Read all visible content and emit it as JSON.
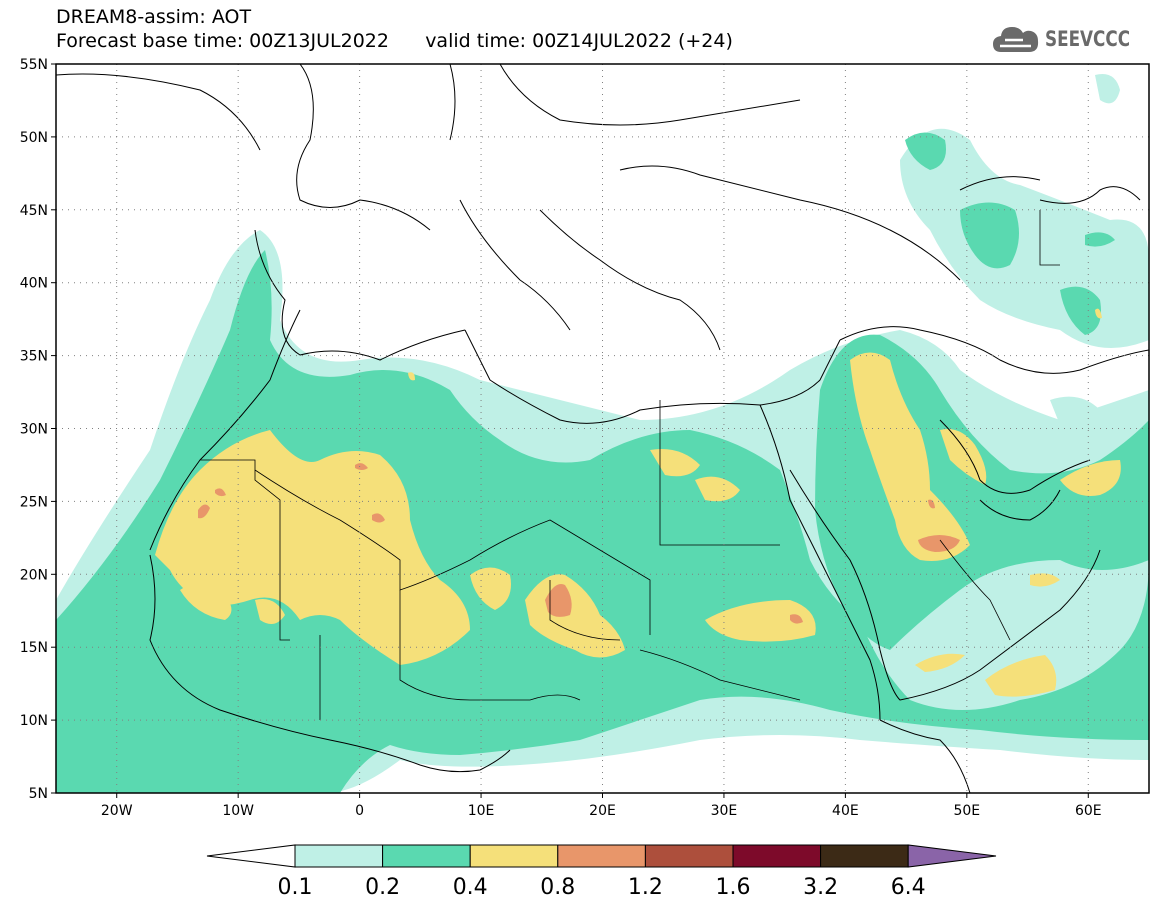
{
  "header": {
    "title_line1": "DREAM8-assim: AOT",
    "title_line2": "Forecast base time: 00Z13JUL2022      valid time: 00Z14JUL2022 (+24)",
    "logo_text": "SEEVCCC",
    "logo_icon": "cloud-icon"
  },
  "map": {
    "lon_range": [
      -25,
      65
    ],
    "lat_range": [
      5,
      55
    ],
    "lat_ticks": [
      {
        "value": 55,
        "label": "55N"
      },
      {
        "value": 50,
        "label": "50N"
      },
      {
        "value": 45,
        "label": "45N"
      },
      {
        "value": 40,
        "label": "40N"
      },
      {
        "value": 35,
        "label": "35N"
      },
      {
        "value": 30,
        "label": "30N"
      },
      {
        "value": 25,
        "label": "25N"
      },
      {
        "value": 20,
        "label": "20N"
      },
      {
        "value": 15,
        "label": "15N"
      },
      {
        "value": 10,
        "label": "10N"
      },
      {
        "value": 5,
        "label": "5N"
      }
    ],
    "lon_ticks": [
      {
        "value": -20,
        "label": "20W"
      },
      {
        "value": -10,
        "label": "10W"
      },
      {
        "value": 0,
        "label": "0"
      },
      {
        "value": 10,
        "label": "10E"
      },
      {
        "value": 20,
        "label": "20E"
      },
      {
        "value": 30,
        "label": "30E"
      },
      {
        "value": 40,
        "label": "40E"
      },
      {
        "value": 50,
        "label": "50E"
      },
      {
        "value": 60,
        "label": "60E"
      }
    ]
  },
  "colorbar": {
    "labels": [
      "0.1",
      "0.2",
      "0.4",
      "0.8",
      "1.2",
      "1.6",
      "3.2",
      "6.4"
    ],
    "colors": [
      "#ffffff",
      "#bff0e6",
      "#5ad9b0",
      "#f5e07a",
      "#e8966a",
      "#ad4f3c",
      "#7d0a2a",
      "#3c2a16",
      "#8a64a8"
    ]
  },
  "colors": {
    "c1": "#bff0e6",
    "c2": "#5ad9b0",
    "c3": "#f5e07a",
    "c4": "#e8966a"
  }
}
